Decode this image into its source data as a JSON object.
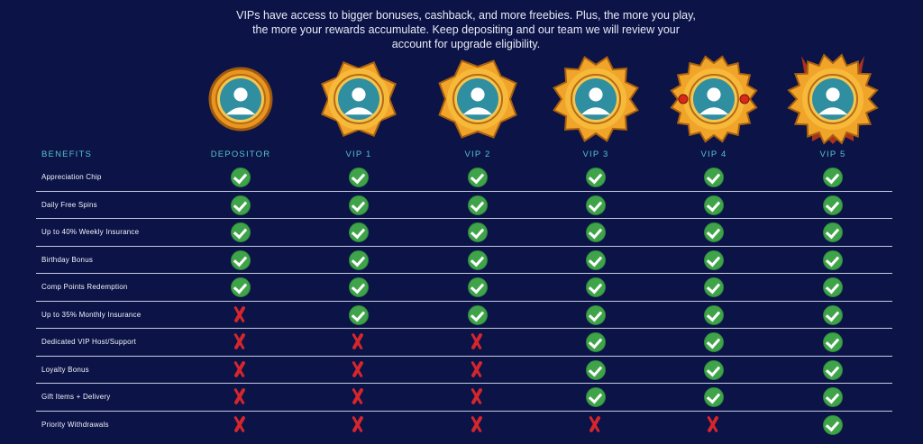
{
  "intro_text": "VIPs have access to bigger bonuses, cashback, and more freebies. Plus, the more you play, the more your rewards accumulate. Keep depositing and our team we will review your account for upgrade eligibility.",
  "benefits_header": "BENEFITS",
  "tiers": [
    {
      "label": "DEPOSITOR",
      "badge_icon": "depositor-badge-icon"
    },
    {
      "label": "VIP 1",
      "badge_icon": "vip1-badge-icon"
    },
    {
      "label": "VIP 2",
      "badge_icon": "vip2-badge-icon"
    },
    {
      "label": "VIP 3",
      "badge_icon": "vip3-badge-icon"
    },
    {
      "label": "VIP 4",
      "badge_icon": "vip4-badge-icon"
    },
    {
      "label": "VIP 5",
      "badge_icon": "vip5-badge-icon"
    }
  ],
  "benefits": [
    {
      "label": "Appreciation Chip",
      "availability": [
        true,
        true,
        true,
        true,
        true,
        true
      ]
    },
    {
      "label": "Daily Free Spins",
      "availability": [
        true,
        true,
        true,
        true,
        true,
        true
      ]
    },
    {
      "label": "Up to 40% Weekly Insurance",
      "availability": [
        true,
        true,
        true,
        true,
        true,
        true
      ]
    },
    {
      "label": "Birthday Bonus",
      "availability": [
        true,
        true,
        true,
        true,
        true,
        true
      ]
    },
    {
      "label": "Comp Points Redemption",
      "availability": [
        true,
        true,
        true,
        true,
        true,
        true
      ]
    },
    {
      "label": "Up to 35% Monthly Insurance",
      "availability": [
        false,
        true,
        true,
        true,
        true,
        true
      ]
    },
    {
      "label": "Dedicated VIP Host/Support",
      "availability": [
        false,
        false,
        false,
        true,
        true,
        true
      ]
    },
    {
      "label": "Loyalty Bonus",
      "availability": [
        false,
        false,
        false,
        true,
        true,
        true
      ]
    },
    {
      "label": "Gift Items + Delivery",
      "availability": [
        false,
        false,
        false,
        true,
        true,
        true
      ]
    },
    {
      "label": "Priority Withdrawals",
      "availability": [
        false,
        false,
        false,
        false,
        false,
        true
      ]
    }
  ],
  "colors": {
    "background": "#0b1347",
    "header_accent": "#57c3c9",
    "check_green": "#3fa34a",
    "cross_red": "#d5262b",
    "gold": "#f0a52a"
  }
}
